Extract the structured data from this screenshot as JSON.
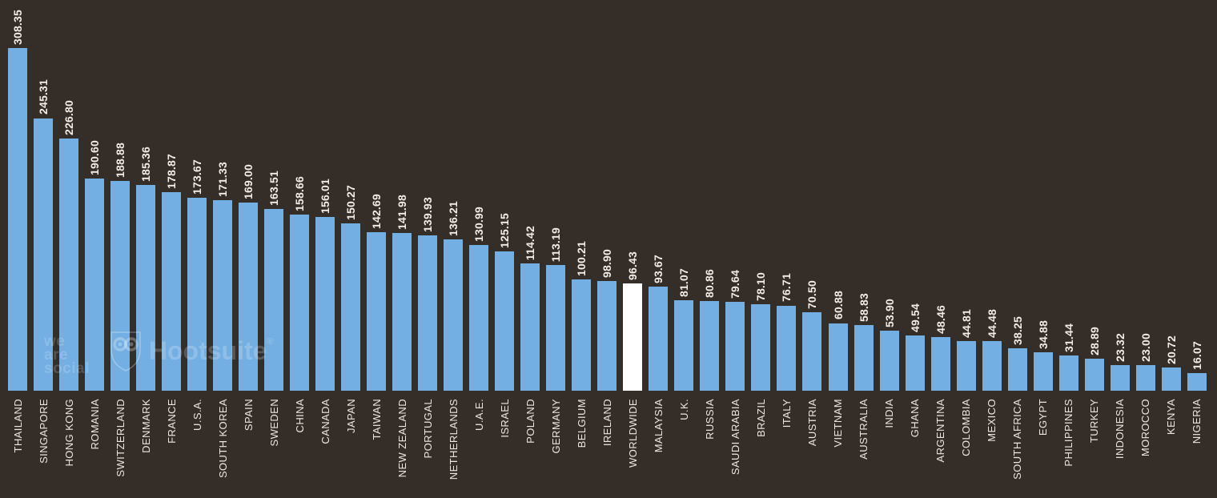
{
  "chart_data": {
    "type": "bar",
    "categories": [
      "THAILAND",
      "SINGAPORE",
      "HONG KONG",
      "ROMANIA",
      "SWITZERLAND",
      "DENMARK",
      "FRANCE",
      "U.S.A.",
      "SOUTH KOREA",
      "SPAIN",
      "SWEDEN",
      "CHINA",
      "CANADA",
      "JAPAN",
      "TAIWAN",
      "NEW ZEALAND",
      "PORTUGAL",
      "NETHERLANDS",
      "U.A.E.",
      "ISRAEL",
      "POLAND",
      "GERMANY",
      "BELGIUM",
      "IRELAND",
      "WORLDWIDE",
      "MALAYSIA",
      "U.K.",
      "RUSSIA",
      "SAUDI ARABIA",
      "BRAZIL",
      "ITALY",
      "AUSTRIA",
      "VIETNAM",
      "AUSTRALIA",
      "INDIA",
      "GHANA",
      "ARGENTINA",
      "COLOMBIA",
      "MEXICO",
      "SOUTH AFRICA",
      "EGYPT",
      "PHILIPPINES",
      "TURKEY",
      "INDONESIA",
      "MOROCCO",
      "KENYA",
      "NIGERIA"
    ],
    "values": [
      308.35,
      245.31,
      226.8,
      190.6,
      188.88,
      185.36,
      178.87,
      173.67,
      171.33,
      169.0,
      163.51,
      158.66,
      156.01,
      150.27,
      142.69,
      141.98,
      139.93,
      136.21,
      130.99,
      125.15,
      114.42,
      113.19,
      100.21,
      98.9,
      96.43,
      93.67,
      81.07,
      80.86,
      79.64,
      78.1,
      76.71,
      70.5,
      60.88,
      58.83,
      53.9,
      49.54,
      48.46,
      44.81,
      44.48,
      38.25,
      34.88,
      31.44,
      28.89,
      23.32,
      23.0,
      20.72,
      16.07
    ],
    "value_format": "0.00",
    "highlight_category": "WORLDWIDE",
    "background": "#352D28",
    "bar_color": "#73AFE3",
    "highlight_color": "#FFFFFF",
    "value_label_color": "#F2EDE5",
    "category_label_color": "#EDE7DE",
    "ylim": [
      0,
      308.35
    ],
    "grid": false,
    "legend": false,
    "value_labels_rotation_deg": -90,
    "category_labels_rotation_deg": -90
  },
  "watermark": {
    "lines": [
      "we",
      "are",
      "social"
    ],
    "brand": "Hootsuite",
    "registered_mark": "®",
    "owl_icon": "hootsuite-owl-icon"
  }
}
